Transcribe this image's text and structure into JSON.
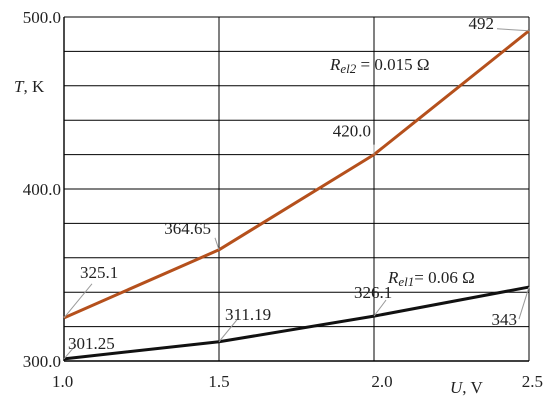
{
  "chart_data": {
    "type": "line",
    "title": "",
    "xlabel": {
      "symbol": "U",
      "unit": ", V"
    },
    "ylabel": {
      "symbol": "T",
      "unit": ", K"
    },
    "xlim": [
      1.0,
      2.5
    ],
    "ylim": [
      300,
      500
    ],
    "x_ticks": [
      {
        "value": 1.0,
        "label": "1.0"
      },
      {
        "value": 1.5,
        "label": "1.5"
      },
      {
        "value": 2.0,
        "label": "2.0"
      },
      {
        "value": 2.5,
        "label": "2.5"
      }
    ],
    "y_ticks": [
      {
        "value": 300,
        "label": "300.0"
      },
      {
        "value": 400,
        "label": "400.0"
      },
      {
        "value": 500,
        "label": "500.0"
      }
    ],
    "grid": {
      "y_step": 20,
      "x_major": [
        1.5,
        2.0
      ],
      "x_step": 0.5
    },
    "legend": "none",
    "series": [
      {
        "key": "rel2",
        "color": "#b5501c",
        "x": [
          1.0,
          1.5,
          2.0,
          2.5
        ],
        "y": [
          325.1,
          364.65,
          420.0,
          492
        ],
        "point_labels": [
          "325.1",
          "364.65",
          "420.0",
          "492"
        ],
        "name_symbol": "R",
        "name_sub": "el2",
        "name_value": " = 0.015 Ω"
      },
      {
        "key": "rel1",
        "color": "#111111",
        "x": [
          1.0,
          1.5,
          2.0,
          2.5
        ],
        "y": [
          301.25,
          311.19,
          326.1,
          343
        ],
        "point_labels": [
          "301.25",
          "311.19",
          "326.1",
          "343"
        ],
        "name_symbol": "R",
        "name_sub": "el1",
        "name_value": "= 0.06 Ω"
      }
    ]
  }
}
